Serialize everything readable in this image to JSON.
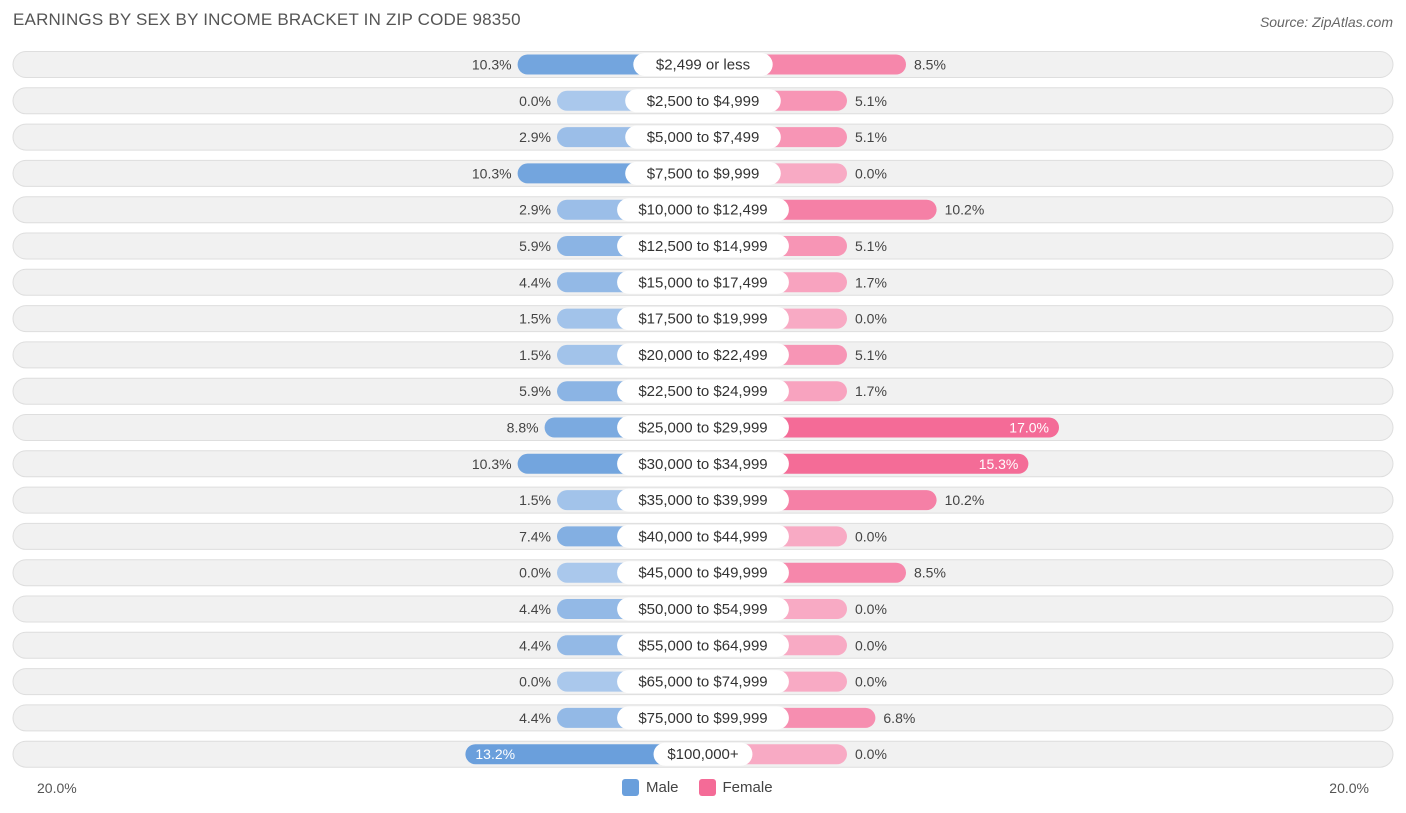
{
  "title": "EARNINGS BY SEX BY INCOME BRACKET IN ZIP CODE 98350",
  "source": "Source: ZipAtlas.com",
  "colors": {
    "male": "#6a9fdc",
    "male_light": "#aac8ec",
    "female": "#f46b97",
    "female_light": "#f8aac4",
    "row_bg": "#f1f1f1",
    "row_border": "#dedede"
  },
  "chart_data": {
    "type": "bar",
    "orientation": "horizontal-diverging",
    "categories": [
      "$2,499 or less",
      "$2,500 to $4,999",
      "$5,000 to $7,499",
      "$7,500 to $9,999",
      "$10,000 to $12,499",
      "$12,500 to $14,999",
      "$15,000 to $17,499",
      "$17,500 to $19,999",
      "$20,000 to $22,499",
      "$22,500 to $24,999",
      "$25,000 to $29,999",
      "$30,000 to $34,999",
      "$35,000 to $39,999",
      "$40,000 to $44,999",
      "$45,000 to $49,999",
      "$50,000 to $54,999",
      "$55,000 to $64,999",
      "$65,000 to $74,999",
      "$75,000 to $99,999",
      "$100,000+"
    ],
    "series": [
      {
        "name": "Male",
        "values": [
          10.3,
          0.0,
          2.9,
          10.3,
          2.9,
          5.9,
          4.4,
          1.5,
          1.5,
          5.9,
          8.8,
          10.3,
          1.5,
          7.4,
          0.0,
          4.4,
          4.4,
          0.0,
          4.4,
          13.2
        ],
        "labels": [
          "10.3%",
          "0.0%",
          "2.9%",
          "10.3%",
          "2.9%",
          "5.9%",
          "4.4%",
          "1.5%",
          "1.5%",
          "5.9%",
          "8.8%",
          "10.3%",
          "1.5%",
          "7.4%",
          "0.0%",
          "4.4%",
          "4.4%",
          "0.0%",
          "4.4%",
          "13.2%"
        ]
      },
      {
        "name": "Female",
        "values": [
          8.5,
          5.1,
          5.1,
          0.0,
          10.2,
          5.1,
          1.7,
          0.0,
          5.1,
          1.7,
          17.0,
          15.3,
          10.2,
          0.0,
          8.5,
          0.0,
          0.0,
          0.0,
          6.8,
          0.0
        ],
        "labels": [
          "8.5%",
          "5.1%",
          "5.1%",
          "0.0%",
          "10.2%",
          "5.1%",
          "1.7%",
          "0.0%",
          "5.1%",
          "1.7%",
          "17.0%",
          "15.3%",
          "10.2%",
          "0.0%",
          "8.5%",
          "0.0%",
          "0.0%",
          "0.0%",
          "6.8%",
          "0.0%"
        ]
      }
    ],
    "xlim": [
      -20,
      20
    ],
    "axis_labels": {
      "left": "20.0%",
      "right": "20.0%"
    },
    "legend": [
      "Male",
      "Female"
    ],
    "legend_position": "bottom-center"
  }
}
